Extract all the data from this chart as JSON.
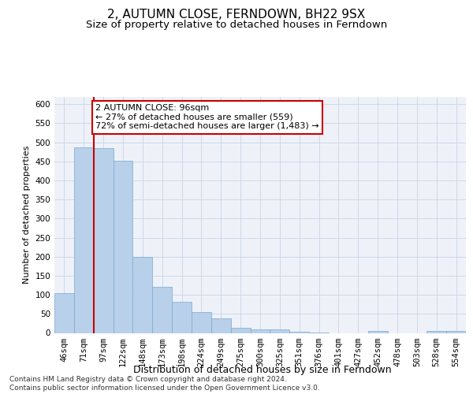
{
  "title": "2, AUTUMN CLOSE, FERNDOWN, BH22 9SX",
  "subtitle": "Size of property relative to detached houses in Ferndown",
  "xlabel": "Distribution of detached houses by size in Ferndown",
  "ylabel": "Number of detached properties",
  "categories": [
    "46sqm",
    "71sqm",
    "97sqm",
    "122sqm",
    "148sqm",
    "173sqm",
    "198sqm",
    "224sqm",
    "249sqm",
    "275sqm",
    "300sqm",
    "325sqm",
    "351sqm",
    "376sqm",
    "401sqm",
    "427sqm",
    "452sqm",
    "478sqm",
    "503sqm",
    "528sqm",
    "554sqm"
  ],
  "values": [
    105,
    487,
    484,
    452,
    200,
    120,
    82,
    55,
    39,
    14,
    9,
    10,
    3,
    1,
    0,
    0,
    5,
    0,
    0,
    5,
    5
  ],
  "bar_color": "#b8d0ea",
  "bar_edge_color": "#7aa8d0",
  "grid_color": "#c8d4e8",
  "background_color": "#eef2f8",
  "annotation_text": "2 AUTUMN CLOSE: 96sqm\n← 27% of detached houses are smaller (559)\n72% of semi-detached houses are larger (1,483) →",
  "annotation_box_color": "#ffffff",
  "annotation_box_edge": "#cc0000",
  "vline_color": "#cc0000",
  "vline_x_index": 2,
  "ylim": [
    0,
    620
  ],
  "yticks": [
    0,
    50,
    100,
    150,
    200,
    250,
    300,
    350,
    400,
    450,
    500,
    550,
    600
  ],
  "footer": "Contains HM Land Registry data © Crown copyright and database right 2024.\nContains public sector information licensed under the Open Government Licence v3.0.",
  "title_fontsize": 11,
  "subtitle_fontsize": 9.5,
  "xlabel_fontsize": 9,
  "ylabel_fontsize": 8,
  "tick_fontsize": 7.5,
  "footer_fontsize": 6.5,
  "ann_fontsize": 8
}
